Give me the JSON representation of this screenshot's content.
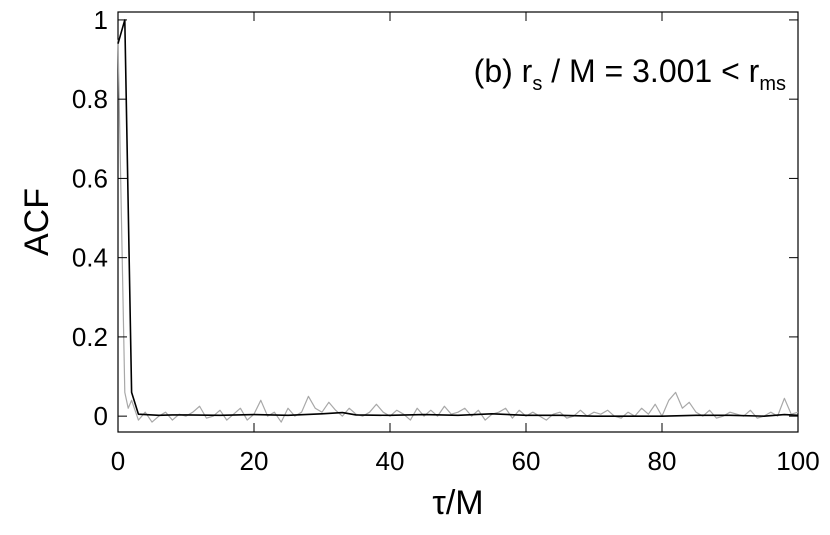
{
  "chart_data": {
    "type": "line",
    "title": "",
    "xlabel": "τ/M",
    "ylabel": "ACF",
    "xlim": [
      0,
      100
    ],
    "ylim": [
      -0.04,
      1.02
    ],
    "x_ticks": [
      0,
      20,
      40,
      60,
      80,
      100
    ],
    "x_tick_labels": [
      "0",
      "20",
      "40",
      "60",
      "80",
      "100"
    ],
    "y_ticks": [
      0,
      0.2,
      0.4,
      0.6,
      0.8,
      1
    ],
    "y_tick_labels": [
      "0",
      "0.2",
      "0.4",
      "0.6",
      "0.8",
      "1"
    ],
    "grid": false,
    "legend": "none",
    "annotation": {
      "prefix": "(b) r",
      "sub1": "s",
      "middle": " / M = 3.001 < r",
      "sub2": "ms",
      "position": "top-right"
    },
    "series": [
      {
        "color": "#000000",
        "x": [
          0,
          1,
          2,
          3,
          4,
          6,
          8,
          10,
          15,
          20,
          25,
          30,
          33,
          35,
          40,
          45,
          50,
          55,
          60,
          65,
          70,
          75,
          80,
          85,
          90,
          95,
          98,
          100
        ],
        "y": [
          0.94,
          1.0,
          0.06,
          0.005,
          0.004,
          0.002,
          0.003,
          0.003,
          0.002,
          0.004,
          0.002,
          0.006,
          0.009,
          0.003,
          0.002,
          0.004,
          0.002,
          0.006,
          0.002,
          0.002,
          0.0,
          0.0,
          0.0,
          0.002,
          0.002,
          0.0,
          0.004,
          0.002
        ]
      },
      {
        "color": "#a8a8a8",
        "x": [
          0,
          1,
          1.5,
          2,
          2.5,
          3,
          4,
          5,
          6,
          7,
          8,
          9,
          10,
          11,
          12,
          13,
          14,
          15,
          16,
          17,
          18,
          19,
          20,
          21,
          22,
          23,
          24,
          25,
          26,
          27,
          28,
          29,
          30,
          31,
          32,
          33,
          34,
          35,
          36,
          37,
          38,
          39,
          40,
          41,
          42,
          43,
          44,
          45,
          46,
          47,
          48,
          49,
          50,
          51,
          52,
          53,
          54,
          55,
          56,
          57,
          58,
          59,
          60,
          61,
          62,
          63,
          64,
          65,
          66,
          67,
          68,
          69,
          70,
          71,
          72,
          73,
          74,
          75,
          76,
          77,
          78,
          79,
          80,
          81,
          82,
          83,
          84,
          85,
          86,
          87,
          88,
          89,
          90,
          91,
          92,
          93,
          94,
          95,
          96,
          97,
          98,
          99,
          100
        ],
        "y": [
          0.95,
          0.06,
          0.02,
          0.04,
          0.015,
          -0.01,
          0.01,
          -0.015,
          0.0,
          0.01,
          -0.01,
          0.005,
          0.0,
          0.01,
          0.025,
          -0.005,
          0.0,
          0.015,
          -0.01,
          0.005,
          0.02,
          -0.01,
          0.005,
          0.04,
          0.0,
          0.01,
          -0.015,
          0.02,
          0.0,
          0.01,
          0.05,
          0.02,
          0.01,
          0.035,
          0.015,
          0.0,
          0.02,
          0.005,
          0.0,
          0.01,
          0.03,
          0.01,
          0.0,
          0.015,
          0.005,
          -0.01,
          0.02,
          0.0,
          0.015,
          0.0,
          0.025,
          0.005,
          0.01,
          0.02,
          0.0,
          0.015,
          -0.01,
          0.005,
          0.01,
          0.02,
          -0.005,
          0.015,
          0.0,
          0.01,
          0.0,
          -0.01,
          0.005,
          0.01,
          -0.005,
          0.0,
          0.015,
          0.0,
          0.01,
          0.005,
          0.015,
          0.0,
          -0.005,
          0.01,
          0.0,
          0.02,
          0.005,
          0.03,
          0.0,
          0.04,
          0.06,
          0.02,
          0.035,
          0.01,
          0.0,
          0.015,
          -0.005,
          0.0,
          0.01,
          0.005,
          0.0,
          0.015,
          -0.005,
          0.0,
          0.01,
          0.0,
          0.045,
          0.005,
          0.01
        ]
      }
    ]
  }
}
